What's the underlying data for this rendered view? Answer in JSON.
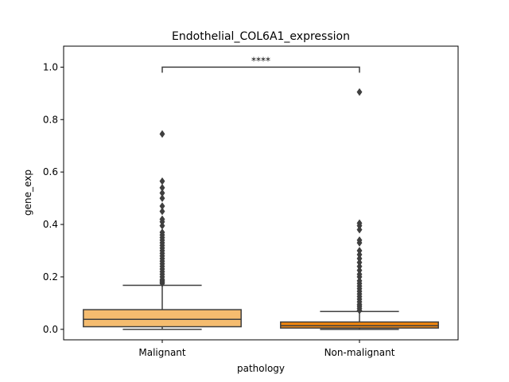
{
  "chart_data": {
    "type": "box",
    "title": "Endothelial_COL6A1_expression",
    "xlabel": "pathology",
    "ylabel": "gene_exp",
    "categories": [
      "Malignant",
      "Non-malignant"
    ],
    "ylim": [
      -0.04,
      1.08
    ],
    "yticks": [
      {
        "value": 0.0,
        "label": "0.0"
      },
      {
        "value": 0.2,
        "label": "0.2"
      },
      {
        "value": 0.4,
        "label": "0.4"
      },
      {
        "value": 0.6,
        "label": "0.6"
      },
      {
        "value": 0.8,
        "label": "0.8"
      },
      {
        "value": 1.0,
        "label": "1.0"
      }
    ],
    "grid": false,
    "boxes": [
      {
        "category": "Malignant",
        "color": "#f5bc6f",
        "whisker_low": 0.0,
        "q1": 0.01,
        "median": 0.038,
        "q3": 0.075,
        "whisker_high": 0.168,
        "outliers": [
          0.175,
          0.18,
          0.185,
          0.19,
          0.2,
          0.21,
          0.22,
          0.23,
          0.24,
          0.25,
          0.26,
          0.27,
          0.28,
          0.29,
          0.3,
          0.31,
          0.32,
          0.33,
          0.34,
          0.35,
          0.36,
          0.37,
          0.395,
          0.41,
          0.42,
          0.45,
          0.47,
          0.5,
          0.52,
          0.54,
          0.565,
          0.745
        ]
      },
      {
        "category": "Non-malignant",
        "color": "#f3870e",
        "whisker_low": 0.0,
        "q1": 0.005,
        "median": 0.014,
        "q3": 0.028,
        "whisker_high": 0.068,
        "outliers": [
          0.072,
          0.08,
          0.088,
          0.095,
          0.105,
          0.115,
          0.125,
          0.135,
          0.145,
          0.155,
          0.165,
          0.175,
          0.185,
          0.2,
          0.21,
          0.225,
          0.24,
          0.255,
          0.27,
          0.285,
          0.3,
          0.33,
          0.34,
          0.38,
          0.395,
          0.405,
          0.905
        ]
      }
    ],
    "annotation": {
      "text": "****",
      "between": [
        "Malignant",
        "Non-malignant"
      ],
      "y": 1.0
    }
  }
}
